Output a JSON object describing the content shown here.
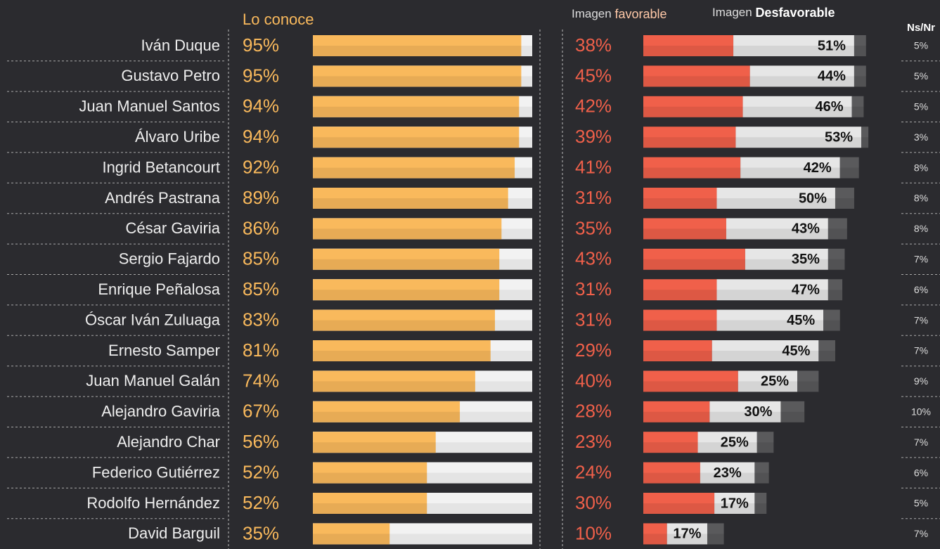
{
  "chart_data": {
    "type": "bar",
    "group_label": "Imagen",
    "categories": [
      "Iván Duque",
      "Gustavo Petro",
      "Juan Manuel Santos",
      "Álvaro Uribe",
      "Ingrid Betancourt",
      "Andrés Pastrana",
      "César Gaviria",
      "Sergio Fajardo",
      "Enrique Peñalosa",
      "Óscar Iván Zuluaga",
      "Ernesto Samper",
      "Juan Manuel Galán",
      "Alejandro Gaviria",
      "Alejandro Char",
      "Federico Gutiérrez",
      "Rodolfo Hernández",
      "David Barguil"
    ],
    "series": [
      {
        "name": "Lo conoce",
        "color": "#f9b95c",
        "values": [
          95,
          95,
          94,
          94,
          92,
          89,
          86,
          85,
          85,
          83,
          81,
          74,
          67,
          56,
          52,
          52,
          35
        ],
        "value_labels": [
          "95%",
          "95%",
          "94%",
          "94%",
          "92%",
          "89%",
          "86%",
          "85%",
          "85%",
          "83%",
          "81%",
          "74%",
          "67%",
          "56%",
          "52%",
          "52%",
          "35%"
        ]
      },
      {
        "name": "favorable",
        "color": "#f0604a",
        "values": [
          38,
          45,
          42,
          39,
          41,
          31,
          35,
          43,
          31,
          31,
          29,
          40,
          28,
          23,
          24,
          30,
          10
        ],
        "value_labels": [
          "38%",
          "45%",
          "42%",
          "39%",
          "41%",
          "31%",
          "35%",
          "43%",
          "31%",
          "31%",
          "29%",
          "40%",
          "28%",
          "23%",
          "24%",
          "30%",
          "10%"
        ]
      },
      {
        "name": "Desfavorable",
        "color": "#e6e6e6",
        "values": [
          51,
          44,
          46,
          53,
          42,
          50,
          43,
          35,
          47,
          45,
          45,
          25,
          30,
          25,
          23,
          17,
          17
        ],
        "value_labels": [
          "51%",
          "44%",
          "46%",
          "53%",
          "42%",
          "50%",
          "43%",
          "35%",
          "47%",
          "45%",
          "45%",
          "25%",
          "30%",
          "25%",
          "23%",
          "17%",
          "17%"
        ]
      },
      {
        "name": "Ns/Nr",
        "color": "#5a5a5c",
        "values": [
          5,
          5,
          5,
          3,
          8,
          8,
          8,
          7,
          6,
          7,
          7,
          9,
          10,
          7,
          6,
          5,
          7
        ],
        "value_labels": [
          "5%",
          "5%",
          "5%",
          "3%",
          "8%",
          "8%",
          "8%",
          "7%",
          "6%",
          "7%",
          "7%",
          "9%",
          "10%",
          "7%",
          "6%",
          "5%",
          "7%"
        ]
      }
    ]
  }
}
